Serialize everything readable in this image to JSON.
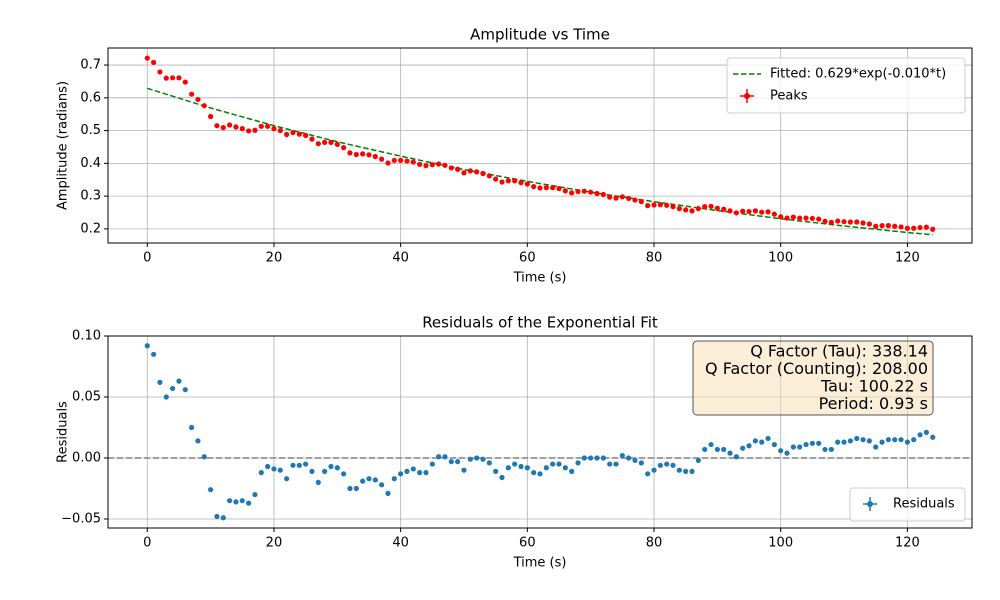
{
  "chart_data": [
    {
      "type": "scatter",
      "title": "Amplitude vs Time",
      "x_label": "Time (s)",
      "y_label": "Amplitude (radians)",
      "xlim": [
        -6.2,
        130.2
      ],
      "ylim": [
        0.157,
        0.752
      ],
      "xticks": [
        0,
        20,
        40,
        60,
        80,
        100,
        120
      ],
      "yticks": [
        0.2,
        0.3,
        0.4,
        0.5,
        0.6,
        0.7
      ],
      "grid": true,
      "legend": "upper right",
      "x": [
        0,
        1,
        2,
        3,
        4,
        5,
        6,
        7,
        8,
        9,
        10,
        11,
        12,
        13,
        14,
        15,
        16,
        17,
        18,
        19,
        20,
        21,
        22,
        23,
        24,
        25,
        26,
        27,
        28,
        29,
        30,
        31,
        32,
        33,
        34,
        35,
        36,
        37,
        38,
        39,
        40,
        41,
        42,
        43,
        44,
        45,
        46,
        47,
        48,
        49,
        50,
        51,
        52,
        53,
        54,
        55,
        56,
        57,
        58,
        59,
        60,
        61,
        62,
        63,
        64,
        65,
        66,
        67,
        68,
        69,
        70,
        71,
        72,
        73,
        74,
        75,
        76,
        77,
        78,
        79,
        80,
        81,
        82,
        83,
        84,
        85,
        86,
        87,
        88,
        89,
        90,
        91,
        92,
        93,
        94,
        95,
        96,
        97,
        98,
        99,
        100,
        101,
        102,
        103,
        104,
        105,
        106,
        107,
        108,
        109,
        110,
        111,
        112,
        113,
        114,
        115,
        116,
        117,
        118,
        119,
        120,
        121,
        122,
        123,
        124
      ],
      "series": [
        {
          "name": "Fitted: 0.629*exp(-0.010*t)",
          "color": "#008000",
          "style": "dashed-line",
          "x": [
            0,
            10,
            20,
            30,
            40,
            50,
            60,
            70,
            80,
            90,
            100,
            110,
            120,
            124
          ],
          "values": [
            0.629,
            0.569,
            0.515,
            0.466,
            0.422,
            0.381,
            0.345,
            0.312,
            0.283,
            0.256,
            0.231,
            0.209,
            0.189,
            0.182
          ]
        },
        {
          "name": "Peaks",
          "color": "#ff0000",
          "style": "points",
          "values": [
            0.721,
            0.708,
            0.679,
            0.66,
            0.661,
            0.661,
            0.648,
            0.611,
            0.595,
            0.576,
            0.543,
            0.515,
            0.509,
            0.517,
            0.511,
            0.506,
            0.499,
            0.501,
            0.513,
            0.513,
            0.506,
            0.5,
            0.488,
            0.494,
            0.489,
            0.485,
            0.474,
            0.46,
            0.464,
            0.464,
            0.458,
            0.448,
            0.432,
            0.427,
            0.429,
            0.426,
            0.421,
            0.413,
            0.401,
            0.409,
            0.409,
            0.407,
            0.404,
            0.397,
            0.393,
            0.396,
            0.398,
            0.394,
            0.386,
            0.382,
            0.371,
            0.377,
            0.374,
            0.369,
            0.362,
            0.352,
            0.343,
            0.347,
            0.347,
            0.341,
            0.337,
            0.329,
            0.325,
            0.326,
            0.326,
            0.323,
            0.316,
            0.31,
            0.314,
            0.315,
            0.312,
            0.308,
            0.305,
            0.297,
            0.294,
            0.298,
            0.293,
            0.288,
            0.283,
            0.271,
            0.273,
            0.274,
            0.272,
            0.268,
            0.262,
            0.258,
            0.255,
            0.262,
            0.268,
            0.269,
            0.263,
            0.26,
            0.255,
            0.249,
            0.254,
            0.253,
            0.255,
            0.251,
            0.252,
            0.245,
            0.237,
            0.233,
            0.236,
            0.233,
            0.233,
            0.232,
            0.23,
            0.223,
            0.22,
            0.224,
            0.222,
            0.221,
            0.221,
            0.218,
            0.215,
            0.208,
            0.21,
            0.21,
            0.208,
            0.206,
            0.202,
            0.202,
            0.204,
            0.205,
            0.199
          ]
        }
      ]
    },
    {
      "type": "scatter",
      "title": "Residuals of the Exponential Fit",
      "x_label": "Time (s)",
      "y_label": "Residuals",
      "xlim": [
        -6.2,
        130.2
      ],
      "ylim": [
        -0.0574,
        0.1
      ],
      "xticks": [
        0,
        20,
        40,
        60,
        80,
        100,
        120
      ],
      "yticks": [
        {
          "value": -0.05,
          "label": "−0.05"
        },
        {
          "value": 0,
          "label": "0.00"
        },
        {
          "value": 0.05,
          "label": "0.05"
        },
        {
          "value": 0.1,
          "label": "0.10"
        }
      ],
      "grid": true,
      "legend": "lower right",
      "hline": 0,
      "annotation_lines": [
        "Q Factor (Tau): 338.14",
        "Q Factor (Counting): 208.00",
        "Tau: 100.22 s",
        "Period: 0.93 s"
      ],
      "x": [
        0,
        1,
        2,
        3,
        4,
        5,
        6,
        7,
        8,
        9,
        10,
        11,
        12,
        13,
        14,
        15,
        16,
        17,
        18,
        19,
        20,
        21,
        22,
        23,
        24,
        25,
        26,
        27,
        28,
        29,
        30,
        31,
        32,
        33,
        34,
        35,
        36,
        37,
        38,
        39,
        40,
        41,
        42,
        43,
        44,
        45,
        46,
        47,
        48,
        49,
        50,
        51,
        52,
        53,
        54,
        55,
        56,
        57,
        58,
        59,
        60,
        61,
        62,
        63,
        64,
        65,
        66,
        67,
        68,
        69,
        70,
        71,
        72,
        73,
        74,
        75,
        76,
        77,
        78,
        79,
        80,
        81,
        82,
        83,
        84,
        85,
        86,
        87,
        88,
        89,
        90,
        91,
        92,
        93,
        94,
        95,
        96,
        97,
        98,
        99,
        100,
        101,
        102,
        103,
        104,
        105,
        106,
        107,
        108,
        109,
        110,
        111,
        112,
        113,
        114,
        115,
        116,
        117,
        118,
        119,
        120,
        121,
        122,
        123,
        124
      ],
      "series": [
        {
          "name": "Residuals",
          "color": "#1f77b4",
          "style": "points",
          "values": [
            0.092,
            0.085,
            0.062,
            0.05,
            0.057,
            0.063,
            0.056,
            0.025,
            0.014,
            0.001,
            -0.026,
            -0.048,
            -0.049,
            -0.035,
            -0.036,
            -0.035,
            -0.037,
            -0.03,
            -0.012,
            -0.007,
            -0.009,
            -0.01,
            -0.017,
            -0.006,
            -0.006,
            -0.005,
            -0.011,
            -0.02,
            -0.011,
            -0.007,
            -0.008,
            -0.013,
            -0.025,
            -0.025,
            -0.019,
            -0.017,
            -0.018,
            -0.022,
            -0.029,
            -0.017,
            -0.013,
            -0.011,
            -0.009,
            -0.012,
            -0.012,
            -0.005,
            0.001,
            0.001,
            -0.003,
            -0.003,
            -0.01,
            -0.001,
            0.0,
            -0.001,
            -0.004,
            -0.011,
            -0.016,
            -0.008,
            -0.005,
            -0.007,
            -0.008,
            -0.012,
            -0.013,
            -0.008,
            -0.005,
            -0.005,
            -0.008,
            -0.011,
            -0.004,
            0.0,
            0.0,
            0.0,
            0.0,
            -0.005,
            -0.005,
            0.002,
            0.0,
            -0.002,
            -0.004,
            -0.013,
            -0.01,
            -0.006,
            -0.005,
            -0.006,
            -0.01,
            -0.011,
            -0.011,
            -0.002,
            0.007,
            0.011,
            0.007,
            0.007,
            0.004,
            0.001,
            0.008,
            0.01,
            0.014,
            0.013,
            0.016,
            0.011,
            0.006,
            0.004,
            0.009,
            0.009,
            0.011,
            0.012,
            0.012,
            0.007,
            0.007,
            0.013,
            0.013,
            0.014,
            0.016,
            0.015,
            0.014,
            0.009,
            0.013,
            0.015,
            0.015,
            0.015,
            0.013,
            0.015,
            0.019,
            0.021,
            0.017
          ]
        }
      ]
    }
  ]
}
